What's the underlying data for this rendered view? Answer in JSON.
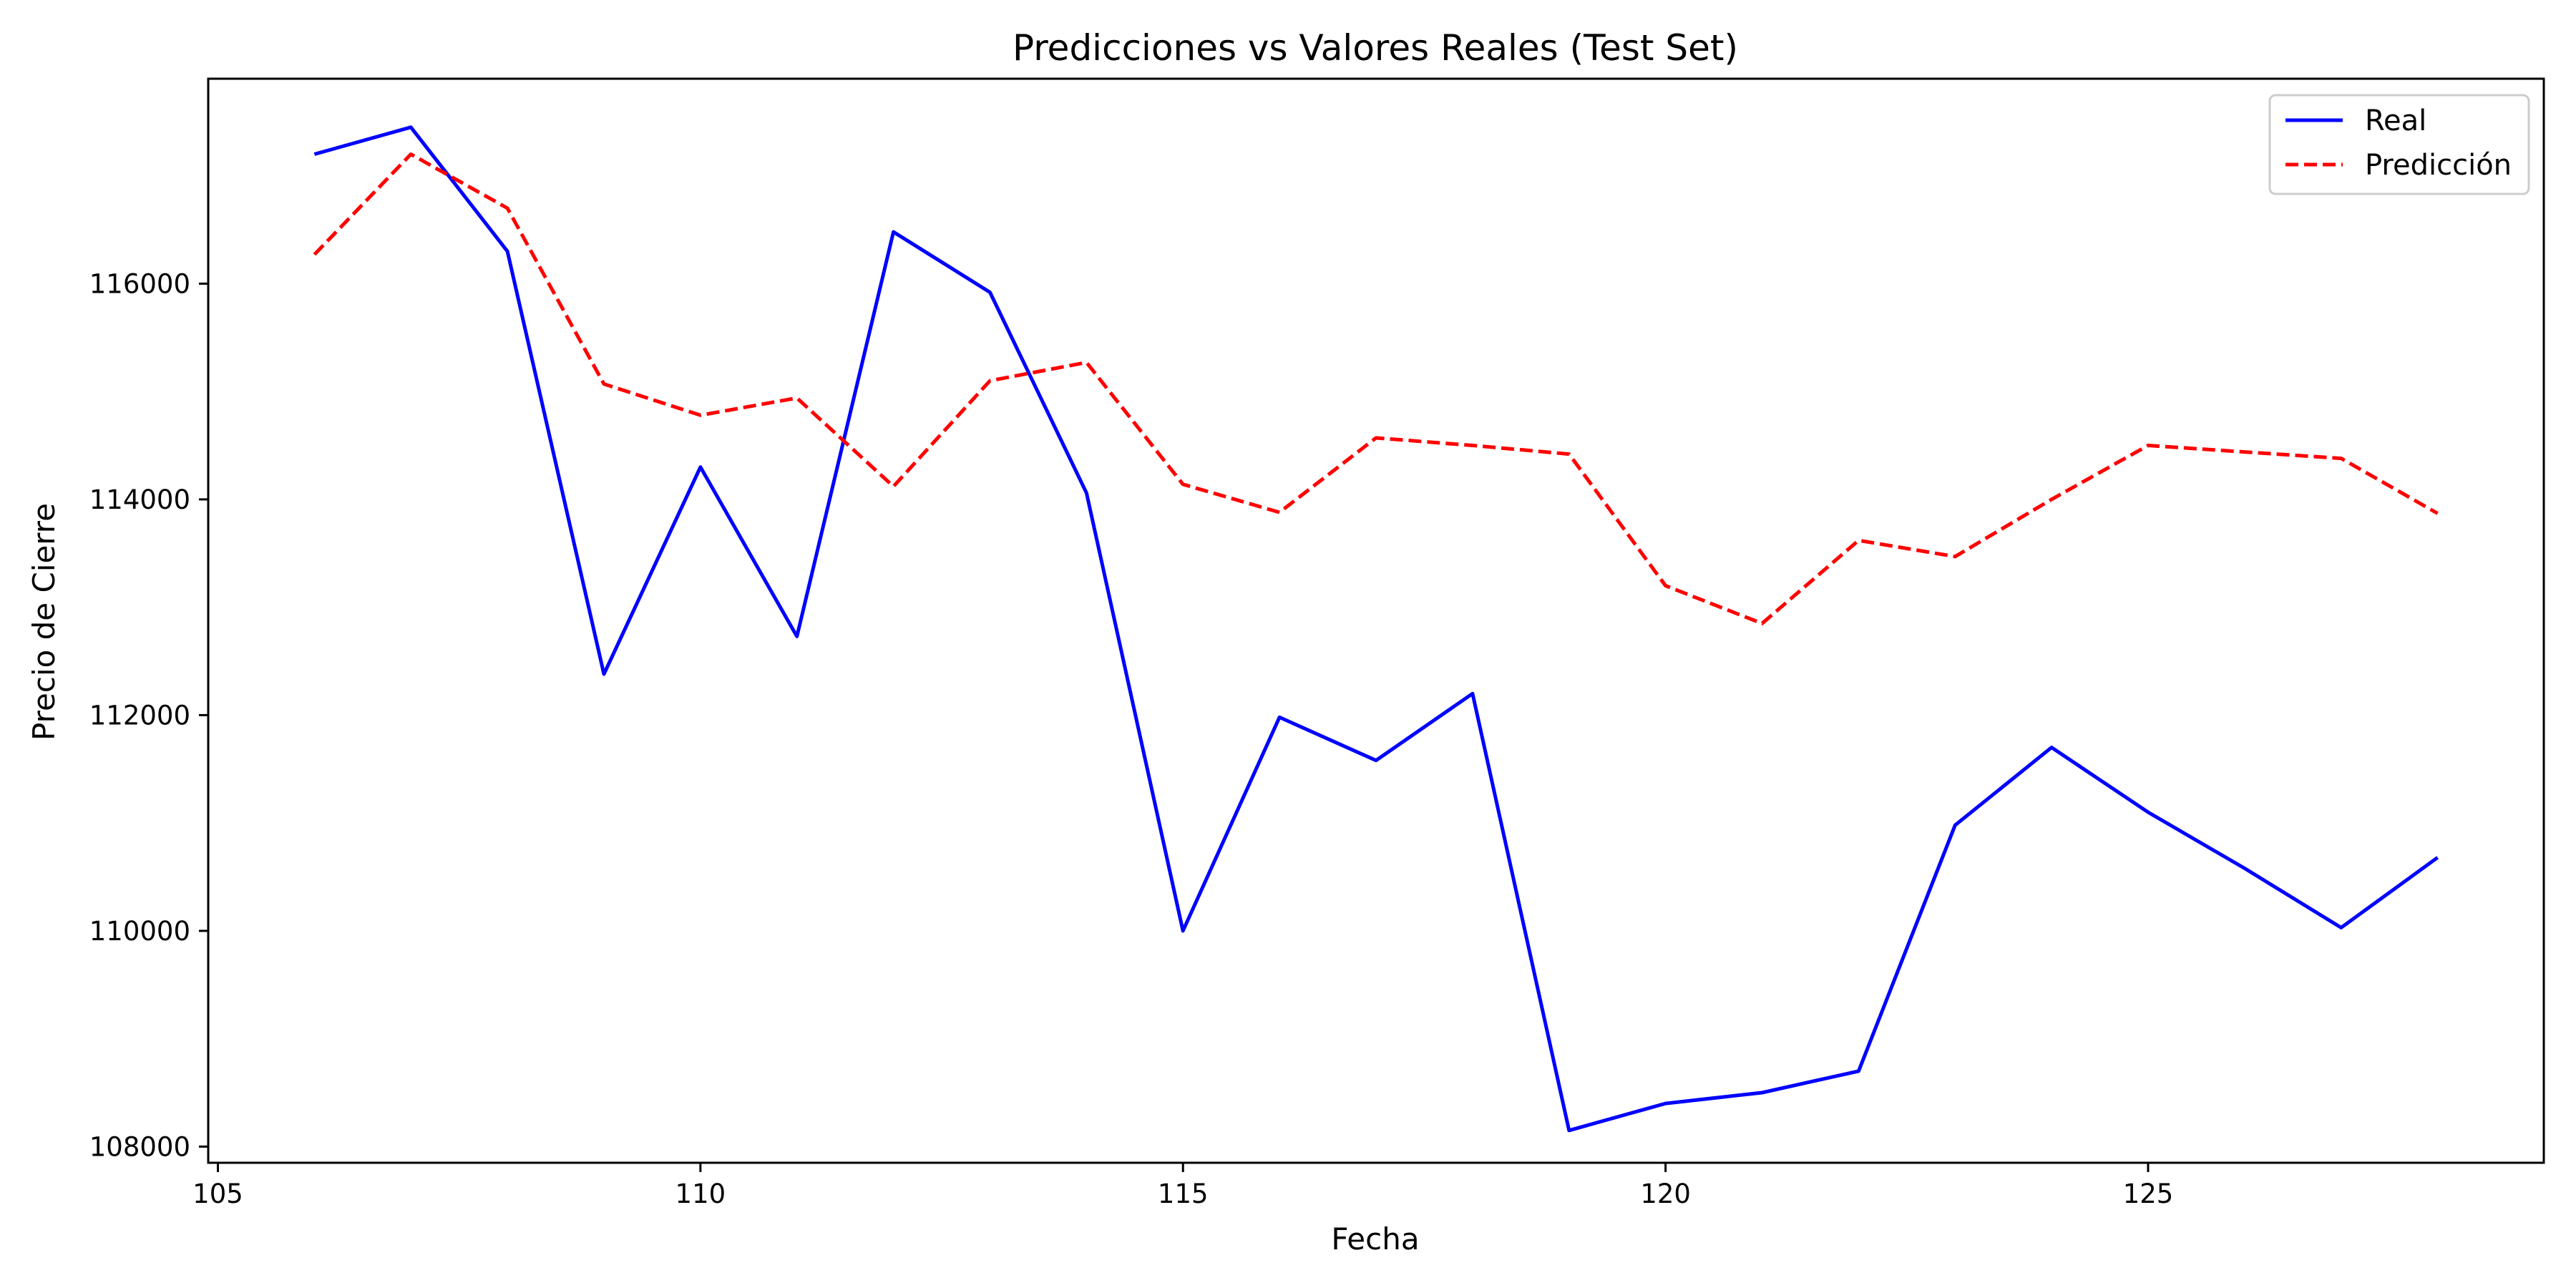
{
  "chart_data": {
    "type": "line",
    "title": "Predicciones vs Valores Reales (Test Set)",
    "xlabel": "Fecha",
    "ylabel": "Precio de Cierre",
    "xlim": [
      104.9,
      129.1
    ],
    "ylim": [
      107850,
      117900
    ],
    "xticks": [
      105,
      110,
      115,
      120,
      125
    ],
    "yticks": [
      108000,
      110000,
      112000,
      114000,
      116000
    ],
    "grid": false,
    "legend": "top-right",
    "x": [
      106,
      107,
      108,
      109,
      110,
      111,
      112,
      113,
      114,
      115,
      116,
      117,
      118,
      119,
      120,
      121,
      122,
      123,
      124,
      125,
      126,
      127,
      128
    ],
    "series": [
      {
        "name": "Real",
        "color": "#0000ff",
        "dash": "solid",
        "values": [
          117200,
          117450,
          116300,
          112380,
          114300,
          112730,
          116480,
          115920,
          114060,
          110000,
          111980,
          111580,
          112200,
          108150,
          108400,
          108500,
          108700,
          110980,
          111700,
          111100,
          110580,
          110030,
          110680
        ]
      },
      {
        "name": "Predicción",
        "color": "#ff0000",
        "dash": "dashed",
        "values": [
          116270,
          117200,
          116700,
          115070,
          114780,
          114940,
          114120,
          115100,
          115270,
          114140,
          113880,
          114570,
          114500,
          114420,
          113200,
          112850,
          113620,
          113470,
          114000,
          114500,
          114440,
          114380,
          113870
        ]
      }
    ]
  }
}
